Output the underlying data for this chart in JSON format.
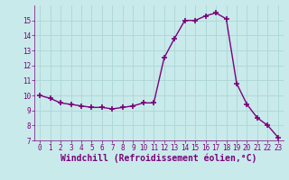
{
  "x": [
    0,
    1,
    2,
    3,
    4,
    5,
    6,
    7,
    8,
    9,
    10,
    11,
    12,
    13,
    14,
    15,
    16,
    17,
    18,
    19,
    20,
    21,
    22,
    23
  ],
  "y": [
    10.0,
    9.8,
    9.5,
    9.4,
    9.3,
    9.2,
    9.2,
    9.1,
    9.2,
    9.3,
    9.5,
    9.5,
    12.5,
    13.8,
    15.0,
    15.0,
    15.3,
    15.5,
    15.1,
    10.8,
    9.4,
    8.5,
    8.0,
    7.2
  ],
  "line_color": "#7B007B",
  "marker": "+",
  "marker_size": 4,
  "bg_color": "#c8eaea",
  "grid_color": "#b0d8d8",
  "xlabel": "Windchill (Refroidissement éolien,°C)",
  "ylim": [
    7,
    16
  ],
  "xlim": [
    -0.5,
    23.5
  ],
  "yticks": [
    7,
    8,
    9,
    10,
    11,
    12,
    13,
    14,
    15
  ],
  "xticks": [
    0,
    1,
    2,
    3,
    4,
    5,
    6,
    7,
    8,
    9,
    10,
    11,
    12,
    13,
    14,
    15,
    16,
    17,
    18,
    19,
    20,
    21,
    22,
    23
  ],
  "tick_fontsize": 5.5,
  "xlabel_fontsize": 7.0,
  "linewidth": 1.0
}
